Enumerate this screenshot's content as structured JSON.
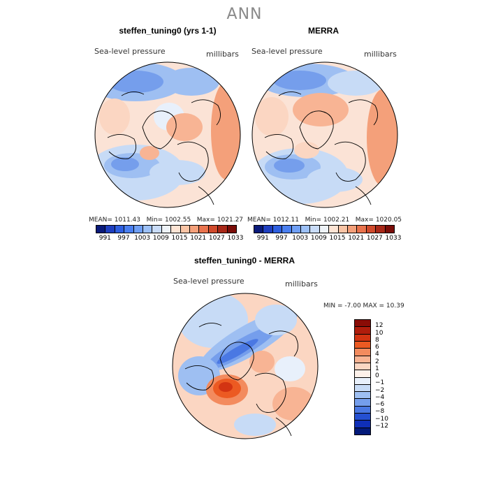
{
  "title": "ANN",
  "panels": [
    {
      "title": "steffen_tuning0 (yrs 1-1)",
      "variable": "Sea-level pressure",
      "units": "millibars",
      "mean_label": "MEAN=",
      "mean": "1011.43",
      "min_label": "Min=",
      "min": "1002.55",
      "max_label": "Max=",
      "max": "1021.27"
    },
    {
      "title": "MERRA",
      "variable": "Sea-level pressure",
      "units": "millibars",
      "mean_label": "MEAN=",
      "mean": "1012.11",
      "min_label": "Min=",
      "min": "1002.21",
      "max_label": "Max=",
      "max": "1020.05"
    }
  ],
  "diff_panel": {
    "title": "steffen_tuning0 - MERRA",
    "variable": "Sea-level pressure",
    "units": "millibars",
    "minmax_text": "MIN =   -7.00 MAX =   10.39"
  },
  "chart_data": [
    {
      "type": "heatmap",
      "projection": "north-polar-stereographic",
      "title": "steffen_tuning0 (yrs 1-1)",
      "variable": "Sea-level pressure",
      "units": "millibars",
      "mean": 1011.43,
      "min": 1002.55,
      "max": 1021.27,
      "colorbar_ticks": [
        991,
        997,
        1003,
        1009,
        1015,
        1021,
        1027,
        1033
      ]
    },
    {
      "type": "heatmap",
      "projection": "north-polar-stereographic",
      "title": "MERRA",
      "variable": "Sea-level pressure",
      "units": "millibars",
      "mean": 1012.11,
      "min": 1002.21,
      "max": 1020.05,
      "colorbar_ticks": [
        991,
        997,
        1003,
        1009,
        1015,
        1021,
        1027,
        1033
      ]
    },
    {
      "type": "heatmap",
      "projection": "north-polar-stereographic",
      "title": "steffen_tuning0 - MERRA",
      "variable": "Sea-level pressure",
      "units": "millibars",
      "min": -7.0,
      "max": 10.39,
      "colorbar_ticks": [
        12,
        10,
        8,
        6,
        4,
        2,
        1,
        0,
        -1,
        -2,
        -4,
        -6,
        -8,
        -10,
        -12
      ]
    }
  ],
  "colorbar_abs": {
    "ticks": [
      "991",
      "997",
      "1003",
      "1009",
      "1015",
      "1021",
      "1027",
      "1033"
    ],
    "colors": [
      "#0a1a7a",
      "#1f3fbf",
      "#2e5fe0",
      "#4a7ff0",
      "#6f9ff5",
      "#9cc0f7",
      "#c9dcf8",
      "#eef3f8",
      "#fde4d4",
      "#f9c4a5",
      "#f4a07a",
      "#e9734d",
      "#d04a2c",
      "#a82818",
      "#7a0d08"
    ]
  },
  "colorbar_diff": {
    "ticks": [
      "12",
      "10",
      "8",
      "6",
      "4",
      "2",
      "1",
      "0",
      "−1",
      "−2",
      "−4",
      "−6",
      "−8",
      "−10",
      "−12"
    ],
    "colors": [
      "#8a0c06",
      "#b01d0c",
      "#d33412",
      "#ec5a22",
      "#f38b5e",
      "#f8b494",
      "#fbd6c2",
      "#fdf1ea",
      "#e8f0fb",
      "#c7dbf6",
      "#9ebff2",
      "#759eec",
      "#4a78e3",
      "#2550d2",
      "#0f2fb8",
      "#031a7a"
    ]
  }
}
